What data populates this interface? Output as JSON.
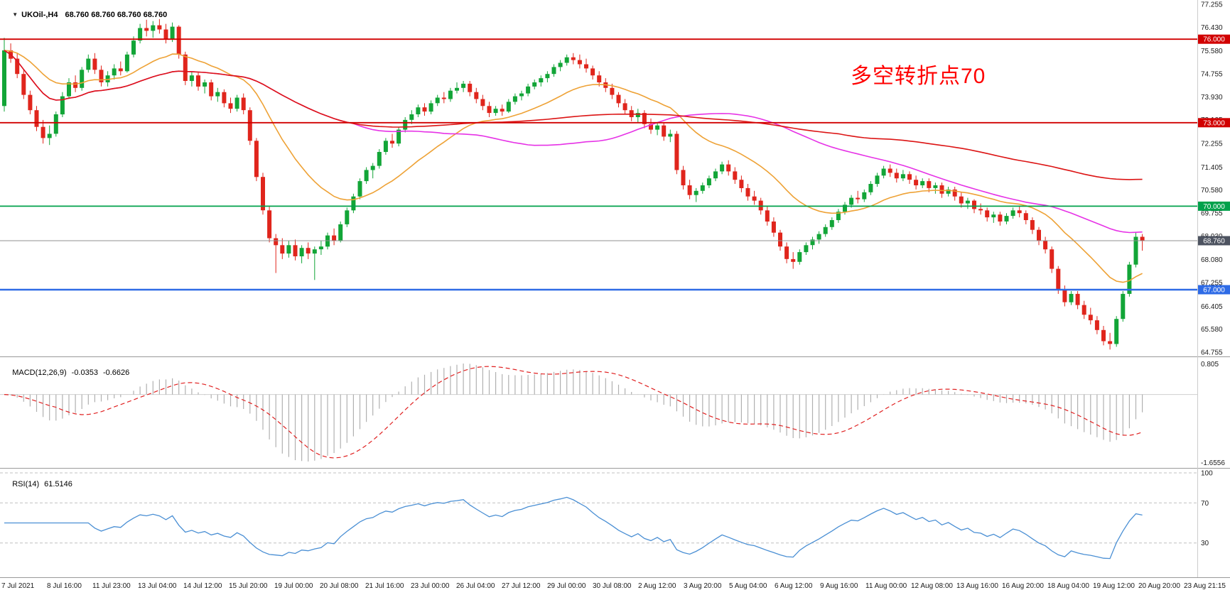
{
  "header": {
    "dropdown_icon": "▼",
    "symbol": "UKOil-,H4",
    "quote_line": "68.760 68.760 68.760 68.760"
  },
  "annotation": {
    "text": "多空转折点70",
    "color": "#ff0000"
  },
  "chart_data": {
    "type": "candlestick",
    "symbol": "UKOil-",
    "timeframe": "H4",
    "up_color": "#12a537",
    "down_color": "#e0251c",
    "price_axis": {
      "min": 64.755,
      "max": 77.255,
      "ticks": [
        "77.255",
        "76.430",
        "75.580",
        "74.755",
        "73.930",
        "73.105",
        "72.255",
        "71.405",
        "70.580",
        "69.755",
        "68.930",
        "68.080",
        "67.255",
        "66.405",
        "65.580",
        "64.755"
      ]
    },
    "hlines": [
      {
        "value": 76.0,
        "label": "76.000",
        "color": "#d10000",
        "width": 1.8
      },
      {
        "value": 73.0,
        "label": "73.000",
        "color": "#d10000",
        "width": 1.8
      },
      {
        "value": 70.0,
        "label": "70.000",
        "color": "#00a14b",
        "width": 1.8
      },
      {
        "value": 67.0,
        "label": "67.000",
        "color": "#2e6be6",
        "width": 2.4
      }
    ],
    "current_price": {
      "value": 68.76,
      "label": "68.760",
      "badge": "#4d5360"
    },
    "ma": [
      {
        "period": 21,
        "method": "ema",
        "color": "#eea236"
      },
      {
        "period": 55,
        "method": "sma",
        "color": "#e632e6"
      },
      {
        "period": 130,
        "method": "sma",
        "color": "#dc1414"
      }
    ],
    "macd": {
      "label": "MACD(12,26,9)",
      "value_main": "-0.0353",
      "value_signal": "-0.6626",
      "fast": 12,
      "slow": 26,
      "signal": 9,
      "axis_max": "0.805",
      "axis_min": "-1.6556",
      "hist_color": "#b0b0b0",
      "signal_color": "#e02020"
    },
    "rsi": {
      "label": "RSI(14)",
      "value": "61.5146",
      "period": 14,
      "color": "#4a8fd4",
      "grid_levels": [
        100,
        70,
        30
      ],
      "axis_labels": [
        {
          "value": 100,
          "label": "100"
        },
        {
          "value": 70,
          "label": "70"
        },
        {
          "value": 30,
          "label": "30"
        }
      ]
    },
    "time_labels": [
      "7 Jul 2021",
      "8 Jul 16:00",
      "11 Jul 23:00",
      "13 Jul 04:00",
      "14 Jul 12:00",
      "15 Jul 20:00",
      "19 Jul 00:00",
      "20 Jul 08:00",
      "21 Jul 16:00",
      "23 Jul 00:00",
      "26 Jul 04:00",
      "27 Jul 12:00",
      "29 Jul 00:00",
      "30 Jul 08:00",
      "2 Aug 12:00",
      "3 Aug 20:00",
      "5 Aug 04:00",
      "6 Aug 12:00",
      "9 Aug 16:00",
      "11 Aug 00:00",
      "12 Aug 08:00",
      "13 Aug 16:00",
      "16 Aug 20:00",
      "18 Aug 04:00",
      "19 Aug 12:00",
      "20 Aug 20:00",
      "23 Aug 21:15"
    ],
    "candles": [
      [
        73.6,
        76.05,
        73.4,
        75.6
      ],
      [
        75.6,
        75.85,
        75.15,
        75.3
      ],
      [
        75.3,
        75.5,
        74.6,
        74.75
      ],
      [
        74.75,
        74.9,
        73.85,
        74.0
      ],
      [
        74.0,
        74.15,
        73.3,
        73.45
      ],
      [
        73.45,
        73.6,
        72.7,
        72.85
      ],
      [
        72.85,
        73.1,
        72.25,
        72.45
      ],
      [
        72.45,
        72.9,
        72.2,
        72.6
      ],
      [
        72.6,
        73.4,
        72.5,
        73.3
      ],
      [
        73.3,
        74.1,
        73.2,
        73.95
      ],
      [
        73.95,
        74.6,
        73.85,
        74.45
      ],
      [
        74.45,
        74.7,
        74.1,
        74.25
      ],
      [
        74.25,
        75.0,
        74.15,
        74.9
      ],
      [
        74.9,
        75.45,
        74.8,
        75.3
      ],
      [
        75.3,
        75.5,
        74.75,
        74.9
      ],
      [
        74.9,
        75.05,
        74.3,
        74.45
      ],
      [
        74.45,
        74.85,
        74.3,
        74.7
      ],
      [
        74.7,
        75.1,
        74.55,
        74.95
      ],
      [
        74.95,
        75.2,
        74.7,
        74.85
      ],
      [
        74.85,
        75.55,
        74.8,
        75.45
      ],
      [
        75.45,
        76.1,
        75.35,
        75.95
      ],
      [
        75.95,
        76.55,
        75.85,
        76.4
      ],
      [
        76.4,
        76.7,
        76.1,
        76.3
      ],
      [
        76.3,
        76.65,
        76.05,
        76.5
      ],
      [
        76.5,
        76.72,
        76.2,
        76.35
      ],
      [
        76.35,
        76.55,
        75.85,
        76.0
      ],
      [
        76.0,
        76.6,
        75.9,
        76.45
      ],
      [
        76.45,
        76.5,
        75.3,
        75.45
      ],
      [
        75.45,
        75.55,
        74.35,
        74.5
      ],
      [
        74.5,
        74.85,
        74.3,
        74.7
      ],
      [
        74.7,
        74.8,
        74.15,
        74.3
      ],
      [
        74.3,
        74.55,
        74.05,
        74.45
      ],
      [
        74.45,
        74.55,
        73.8,
        73.95
      ],
      [
        73.95,
        74.25,
        73.75,
        74.1
      ],
      [
        74.1,
        74.2,
        73.55,
        73.7
      ],
      [
        73.7,
        73.9,
        73.35,
        73.5
      ],
      [
        73.5,
        74.0,
        73.4,
        73.9
      ],
      [
        73.9,
        74.05,
        73.3,
        73.45
      ],
      [
        73.45,
        73.55,
        72.2,
        72.35
      ],
      [
        72.35,
        72.45,
        70.9,
        71.05
      ],
      [
        71.05,
        71.2,
        69.7,
        69.85
      ],
      [
        69.85,
        70.0,
        68.7,
        68.85
      ],
      [
        68.85,
        69.0,
        67.6,
        68.6
      ],
      [
        68.6,
        68.85,
        68.1,
        68.3
      ],
      [
        68.3,
        68.75,
        68.15,
        68.6
      ],
      [
        68.6,
        68.8,
        68.05,
        68.2
      ],
      [
        68.2,
        68.6,
        67.95,
        68.5
      ],
      [
        68.5,
        68.7,
        68.1,
        68.3
      ],
      [
        68.3,
        68.55,
        67.35,
        68.45
      ],
      [
        68.45,
        68.75,
        68.25,
        68.55
      ],
      [
        68.55,
        69.05,
        68.45,
        68.95
      ],
      [
        68.95,
        69.2,
        68.6,
        68.75
      ],
      [
        68.75,
        69.45,
        68.7,
        69.35
      ],
      [
        69.35,
        69.95,
        69.25,
        69.85
      ],
      [
        69.85,
        70.45,
        69.75,
        70.35
      ],
      [
        70.35,
        71.0,
        70.25,
        70.9
      ],
      [
        70.9,
        71.4,
        70.8,
        71.3
      ],
      [
        71.3,
        71.55,
        71.0,
        71.45
      ],
      [
        71.45,
        72.05,
        71.35,
        71.95
      ],
      [
        71.95,
        72.45,
        71.85,
        72.35
      ],
      [
        72.35,
        72.6,
        72.1,
        72.25
      ],
      [
        72.25,
        72.85,
        72.15,
        72.75
      ],
      [
        72.75,
        73.2,
        72.65,
        73.1
      ],
      [
        73.1,
        73.45,
        72.95,
        73.3
      ],
      [
        73.3,
        73.65,
        73.2,
        73.55
      ],
      [
        73.55,
        73.7,
        73.25,
        73.4
      ],
      [
        73.4,
        73.8,
        73.3,
        73.7
      ],
      [
        73.7,
        74.0,
        73.6,
        73.9
      ],
      [
        73.9,
        74.1,
        73.7,
        73.85
      ],
      [
        73.85,
        74.25,
        73.75,
        74.15
      ],
      [
        74.15,
        74.45,
        74.05,
        74.25
      ],
      [
        74.25,
        74.5,
        74.1,
        74.4
      ],
      [
        74.4,
        74.5,
        73.95,
        74.1
      ],
      [
        74.1,
        74.25,
        73.7,
        73.85
      ],
      [
        73.85,
        74.0,
        73.45,
        73.6
      ],
      [
        73.6,
        73.75,
        73.2,
        73.35
      ],
      [
        73.35,
        73.6,
        73.25,
        73.5
      ],
      [
        73.5,
        73.65,
        73.25,
        73.4
      ],
      [
        73.4,
        73.85,
        73.35,
        73.75
      ],
      [
        73.75,
        74.05,
        73.65,
        73.95
      ],
      [
        73.95,
        74.15,
        73.8,
        74.05
      ],
      [
        74.05,
        74.4,
        73.95,
        74.3
      ],
      [
        74.3,
        74.55,
        74.2,
        74.45
      ],
      [
        74.45,
        74.7,
        74.3,
        74.6
      ],
      [
        74.6,
        74.85,
        74.45,
        74.75
      ],
      [
        74.75,
        75.1,
        74.65,
        75.0
      ],
      [
        75.0,
        75.25,
        74.85,
        75.15
      ],
      [
        75.15,
        75.45,
        75.05,
        75.35
      ],
      [
        75.35,
        75.5,
        75.1,
        75.25
      ],
      [
        75.25,
        75.45,
        74.95,
        75.1
      ],
      [
        75.1,
        75.3,
        74.8,
        74.95
      ],
      [
        74.95,
        75.05,
        74.55,
        74.7
      ],
      [
        74.7,
        74.85,
        74.3,
        74.45
      ],
      [
        74.45,
        74.6,
        74.1,
        74.25
      ],
      [
        74.25,
        74.4,
        73.85,
        74.0
      ],
      [
        74.0,
        74.1,
        73.55,
        73.7
      ],
      [
        73.7,
        73.85,
        73.3,
        73.45
      ],
      [
        73.45,
        73.6,
        73.05,
        73.2
      ],
      [
        73.2,
        73.5,
        73.0,
        73.35
      ],
      [
        73.35,
        73.45,
        72.8,
        72.95
      ],
      [
        72.95,
        73.15,
        72.6,
        72.75
      ],
      [
        72.75,
        73.0,
        72.55,
        72.9
      ],
      [
        72.9,
        73.0,
        72.35,
        72.5
      ],
      [
        72.5,
        72.75,
        72.3,
        72.6
      ],
      [
        72.6,
        72.7,
        71.15,
        71.3
      ],
      [
        71.3,
        71.45,
        70.6,
        70.75
      ],
      [
        70.75,
        70.95,
        70.25,
        70.4
      ],
      [
        70.4,
        70.65,
        70.15,
        70.55
      ],
      [
        70.55,
        70.85,
        70.45,
        70.75
      ],
      [
        70.75,
        71.1,
        70.65,
        71.0
      ],
      [
        71.0,
        71.35,
        70.9,
        71.25
      ],
      [
        71.25,
        71.6,
        71.15,
        71.5
      ],
      [
        71.5,
        71.65,
        71.1,
        71.25
      ],
      [
        71.25,
        71.4,
        70.8,
        70.95
      ],
      [
        70.95,
        71.1,
        70.5,
        70.65
      ],
      [
        70.65,
        70.8,
        70.2,
        70.35
      ],
      [
        70.35,
        70.55,
        70.05,
        70.2
      ],
      [
        70.2,
        70.3,
        69.7,
        69.85
      ],
      [
        69.85,
        70.0,
        69.3,
        69.45
      ],
      [
        69.45,
        69.6,
        68.9,
        69.05
      ],
      [
        69.05,
        69.15,
        68.4,
        68.55
      ],
      [
        68.55,
        68.7,
        67.95,
        68.1
      ],
      [
        68.1,
        68.35,
        67.75,
        68.0
      ],
      [
        68.0,
        68.45,
        67.9,
        68.35
      ],
      [
        68.35,
        68.7,
        68.25,
        68.6
      ],
      [
        68.6,
        68.9,
        68.45,
        68.8
      ],
      [
        68.8,
        69.1,
        68.65,
        69.0
      ],
      [
        69.0,
        69.35,
        68.9,
        69.25
      ],
      [
        69.25,
        69.6,
        69.15,
        69.5
      ],
      [
        69.5,
        69.9,
        69.4,
        69.8
      ],
      [
        69.8,
        70.15,
        69.7,
        70.05
      ],
      [
        70.05,
        70.4,
        69.95,
        70.3
      ],
      [
        70.3,
        70.55,
        70.1,
        70.25
      ],
      [
        70.25,
        70.6,
        70.15,
        70.5
      ],
      [
        70.5,
        70.9,
        70.4,
        70.8
      ],
      [
        70.8,
        71.2,
        70.7,
        71.1
      ],
      [
        71.1,
        71.45,
        71.0,
        71.35
      ],
      [
        71.35,
        71.5,
        71.05,
        71.2
      ],
      [
        71.2,
        71.35,
        70.85,
        71.0
      ],
      [
        71.0,
        71.3,
        70.9,
        71.15
      ],
      [
        71.15,
        71.25,
        70.8,
        70.95
      ],
      [
        70.95,
        71.1,
        70.6,
        70.75
      ],
      [
        70.75,
        71.0,
        70.65,
        70.9
      ],
      [
        70.9,
        71.0,
        70.5,
        70.65
      ],
      [
        70.65,
        70.85,
        70.45,
        70.75
      ],
      [
        70.75,
        70.85,
        70.3,
        70.45
      ],
      [
        70.45,
        70.7,
        70.35,
        70.6
      ],
      [
        70.6,
        70.7,
        70.2,
        70.35
      ],
      [
        70.35,
        70.5,
        69.95,
        70.1
      ],
      [
        70.1,
        70.3,
        69.9,
        70.2
      ],
      [
        70.2,
        70.25,
        69.75,
        69.9
      ],
      [
        69.9,
        70.1,
        69.7,
        69.85
      ],
      [
        69.85,
        69.95,
        69.45,
        69.6
      ],
      [
        69.6,
        69.8,
        69.4,
        69.7
      ],
      [
        69.7,
        69.8,
        69.3,
        69.45
      ],
      [
        69.45,
        69.75,
        69.35,
        69.65
      ],
      [
        69.65,
        69.95,
        69.55,
        69.85
      ],
      [
        69.85,
        70.0,
        69.6,
        69.75
      ],
      [
        69.75,
        69.85,
        69.35,
        69.5
      ],
      [
        69.5,
        69.6,
        69.0,
        69.15
      ],
      [
        69.15,
        69.25,
        68.6,
        68.75
      ],
      [
        68.75,
        68.9,
        68.3,
        68.45
      ],
      [
        68.45,
        68.55,
        67.6,
        67.75
      ],
      [
        67.75,
        67.85,
        66.85,
        67.0
      ],
      [
        67.0,
        67.15,
        66.4,
        66.55
      ],
      [
        66.55,
        66.95,
        66.45,
        66.85
      ],
      [
        66.85,
        66.95,
        66.3,
        66.45
      ],
      [
        66.45,
        66.6,
        65.95,
        66.1
      ],
      [
        66.1,
        66.35,
        65.75,
        65.9
      ],
      [
        65.9,
        66.05,
        65.4,
        65.55
      ],
      [
        65.55,
        65.7,
        65.0,
        65.15
      ],
      [
        65.15,
        65.45,
        64.85,
        65.05
      ],
      [
        65.05,
        66.05,
        64.95,
        65.95
      ],
      [
        65.95,
        66.95,
        65.85,
        66.85
      ],
      [
        66.85,
        68.0,
        66.75,
        67.9
      ],
      [
        67.9,
        69.05,
        67.8,
        68.9
      ],
      [
        68.9,
        69.0,
        68.4,
        68.76
      ]
    ]
  }
}
